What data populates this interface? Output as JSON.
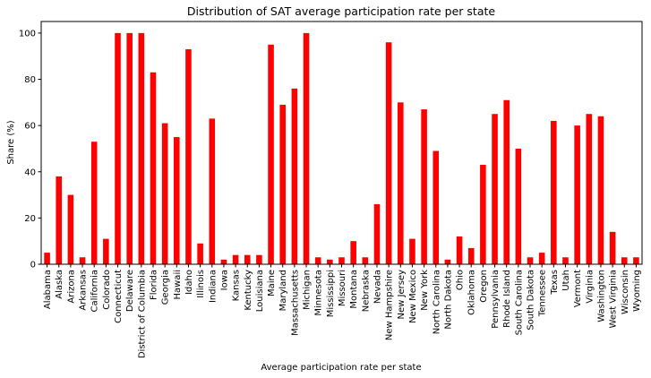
{
  "chart_data": {
    "type": "bar",
    "title": "Distribution of SAT average participation rate per state",
    "xlabel": "Average participation rate per state",
    "ylabel": "Share (%)",
    "ylim": [
      0,
      105
    ],
    "yticks": [
      0,
      20,
      40,
      60,
      80,
      100
    ],
    "bar_color": "#ff0000",
    "grid": false,
    "categories": [
      "Alabama",
      "Alaska",
      "Arizona",
      "Arkansas",
      "California",
      "Colorado",
      "Connecticut",
      "Delaware",
      "District of Columbia",
      "Florida",
      "Georgia",
      "Hawaii",
      "Idaho",
      "Illinois",
      "Indiana",
      "Iowa",
      "Kansas",
      "Kentucky",
      "Louisiana",
      "Maine",
      "Maryland",
      "Massachusetts",
      "Michigan",
      "Minnesota",
      "Mississippi",
      "Missouri",
      "Montana",
      "Nebraska",
      "Nevada",
      "New Hampshire",
      "New Jersey",
      "New Mexico",
      "New York",
      "North Carolina",
      "North Dakota",
      "Ohio",
      "Oklahoma",
      "Oregon",
      "Pennsylvania",
      "Rhode Island",
      "South Carolina",
      "South Dakota",
      "Tennessee",
      "Texas",
      "Utah",
      "Vermont",
      "Virginia",
      "Washington",
      "West Virginia",
      "Wisconsin",
      "Wyoming"
    ],
    "values": [
      5,
      38,
      30,
      3,
      53,
      11,
      100,
      100,
      100,
      83,
      61,
      55,
      93,
      9,
      63,
      2,
      4,
      4,
      4,
      95,
      69,
      76,
      100,
      3,
      2,
      3,
      10,
      3,
      26,
      96,
      70,
      11,
      67,
      49,
      2,
      12,
      7,
      43,
      65,
      71,
      50,
      3,
      5,
      62,
      3,
      60,
      65,
      64,
      14,
      3,
      3
    ]
  }
}
